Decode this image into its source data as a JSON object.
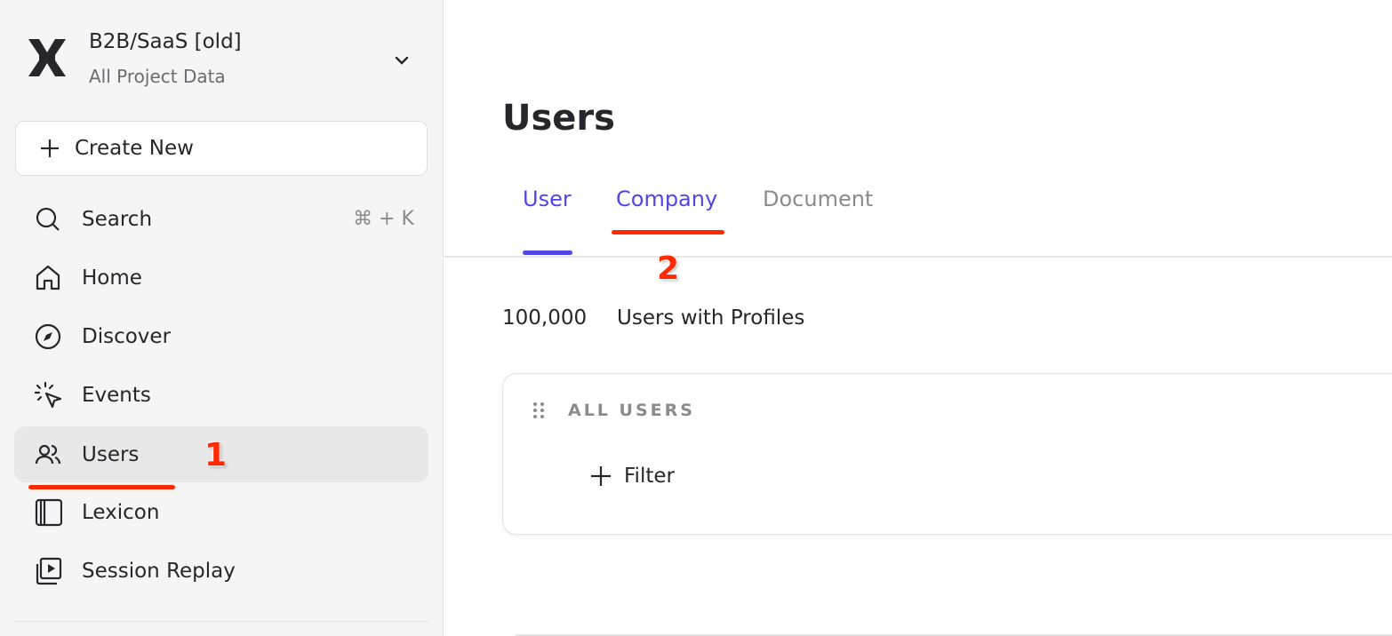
{
  "sidebar": {
    "project_name": "B2B/SaaS [old]",
    "project_scope": "All Project Data",
    "create_new": "Create New",
    "search": {
      "label": "Search",
      "shortcut": "⌘ + K"
    },
    "items": [
      {
        "label": "Home",
        "icon": "home-icon"
      },
      {
        "label": "Discover",
        "icon": "compass-icon"
      },
      {
        "label": "Events",
        "icon": "cursor-click-icon"
      },
      {
        "label": "Users",
        "icon": "users-icon",
        "active": true
      },
      {
        "label": "Lexicon",
        "icon": "book-icon"
      },
      {
        "label": "Session Replay",
        "icon": "replay-icon"
      }
    ]
  },
  "main": {
    "title": "Users",
    "tabs": [
      {
        "label": "User",
        "active": true
      },
      {
        "label": "Company"
      },
      {
        "label": "Document"
      }
    ],
    "count": "100,000",
    "count_label": "Users with Profiles",
    "card": {
      "title": "ALL USERS",
      "filter": "Filter"
    }
  },
  "annotations": [
    "1",
    "2"
  ],
  "colors": {
    "accent": "#5046e5",
    "annotation": "#ff2a00",
    "sidebar_bg": "#f5f5f5"
  }
}
